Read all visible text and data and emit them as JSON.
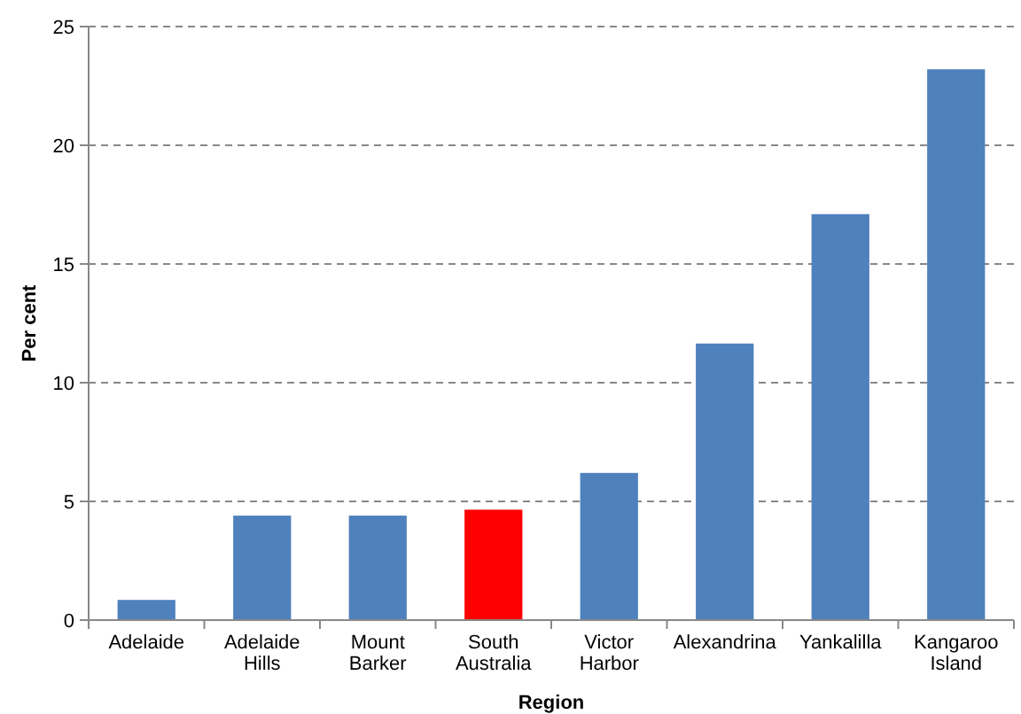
{
  "chart_data": {
    "type": "bar",
    "xlabel": "Region",
    "ylabel": "Per cent",
    "categories": [
      "Adelaide",
      "Adelaide Hills",
      "Mount Barker",
      "South Australia",
      "Victor Harbor",
      "Alexandrina",
      "Yankalilla",
      "Kangaroo Island"
    ],
    "values": [
      0.85,
      4.4,
      4.4,
      4.65,
      6.2,
      11.65,
      17.1,
      23.2
    ],
    "colors": [
      "#4f81bd",
      "#4f81bd",
      "#4f81bd",
      "#ff0000",
      "#4f81bd",
      "#4f81bd",
      "#4f81bd",
      "#4f81bd"
    ],
    "ylim": [
      0,
      25
    ],
    "yticks": [
      0,
      5,
      10,
      15,
      20,
      25
    ],
    "grid": "y"
  }
}
